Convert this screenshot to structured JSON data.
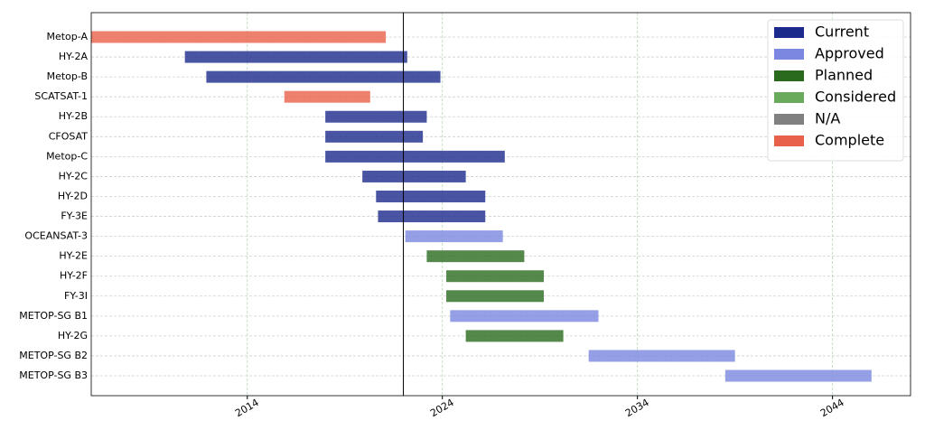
{
  "chart_data": {
    "type": "gantt",
    "categories": [
      "Metop-A",
      "HY-2A",
      "Metop-B",
      "SCATSAT-1",
      "HY-2B",
      "CFOSAT",
      "Metop-C",
      "HY-2C",
      "HY-2D",
      "FY-3E",
      "OCEANSAT-3",
      "HY-2E",
      "HY-2F",
      "FY-3I",
      "METOP-SG B1",
      "HY-2G",
      "METOP-SG B2",
      "METOP-SG B3"
    ],
    "series": [
      {
        "name": "Current",
        "color": "#1c2a8c",
        "start": [
          null,
          2010.8,
          2011.9,
          null,
          2018.0,
          2018.0,
          2018.0,
          2019.9,
          2020.6,
          2020.7,
          null,
          null,
          null,
          null,
          null,
          null,
          null,
          null
        ],
        "end": [
          null,
          2022.2,
          2023.9,
          null,
          2023.2,
          2023.0,
          2027.2,
          2025.2,
          2026.2,
          2026.2,
          null,
          null,
          null,
          null,
          null,
          null,
          null,
          null
        ]
      },
      {
        "name": "Approved",
        "color": "#7b87e0",
        "start": [
          null,
          null,
          null,
          null,
          null,
          null,
          null,
          null,
          null,
          null,
          2022.1,
          null,
          null,
          null,
          2024.4,
          null,
          2031.5,
          2038.5
        ],
        "end": [
          null,
          null,
          null,
          null,
          null,
          null,
          null,
          null,
          null,
          null,
          2027.1,
          null,
          null,
          null,
          2032.0,
          null,
          2039.0,
          2046.0
        ]
      },
      {
        "name": "Planned",
        "color": "#2a6a1e",
        "start": [
          null,
          null,
          null,
          null,
          null,
          null,
          null,
          null,
          null,
          null,
          null,
          2023.2,
          2024.2,
          2024.2,
          null,
          2025.2,
          null,
          null
        ],
        "end": [
          null,
          null,
          null,
          null,
          null,
          null,
          null,
          null,
          null,
          null,
          null,
          2028.2,
          2029.2,
          2029.2,
          null,
          2030.2,
          null,
          null
        ]
      },
      {
        "name": "Considered",
        "color": "#6aaa5c",
        "start": [
          null,
          null,
          null,
          null,
          null,
          null,
          null,
          null,
          null,
          null,
          null,
          null,
          null,
          null,
          null,
          null,
          null,
          null
        ],
        "end": [
          null,
          null,
          null,
          null,
          null,
          null,
          null,
          null,
          null,
          null,
          null,
          null,
          null,
          null,
          null,
          null,
          null,
          null
        ]
      },
      {
        "name": "N/A",
        "color": "#808080",
        "start": [
          null,
          null,
          null,
          null,
          null,
          null,
          null,
          null,
          null,
          null,
          null,
          null,
          null,
          null,
          null,
          null,
          null,
          null
        ],
        "end": [
          null,
          null,
          null,
          null,
          null,
          null,
          null,
          null,
          null,
          null,
          null,
          null,
          null,
          null,
          null,
          null,
          null,
          null
        ]
      },
      {
        "name": "Complete",
        "color": "#e8614a",
        "start": [
          2006.0,
          null,
          null,
          2015.9,
          null,
          null,
          null,
          null,
          null,
          null,
          null,
          null,
          null,
          null,
          null,
          null,
          null,
          null
        ],
        "end": [
          2021.1,
          null,
          null,
          2020.3,
          null,
          null,
          null,
          null,
          null,
          null,
          null,
          null,
          null,
          null,
          null,
          null,
          null,
          null
        ]
      }
    ],
    "xlim": [
      2006,
      2048
    ],
    "xticks": [
      2014,
      2024,
      2034,
      2044
    ],
    "reference_line": 2022.0,
    "grid": true,
    "legend": "upper right"
  }
}
